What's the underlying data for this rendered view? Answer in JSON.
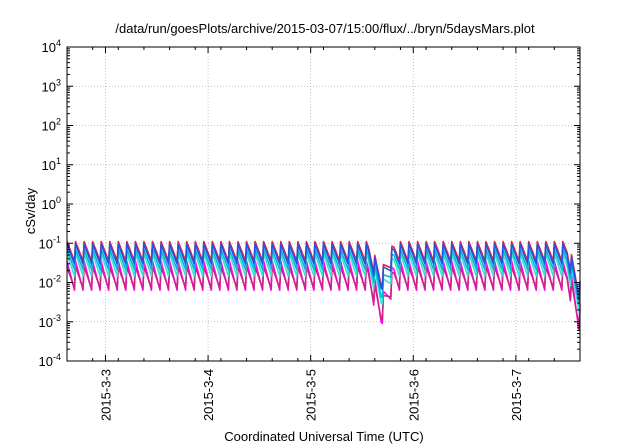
{
  "chart_data": {
    "type": "line",
    "title": "/data/run/goesPlots/archive/2015-03-07/15:00/flux/../bryn/5daysMars.plot",
    "xlabel": "Coordinated Universal Time (UTC)",
    "ylabel": "cSv/day",
    "yscale": "log",
    "ylim": [
      0.0001,
      10000
    ],
    "y_ticks": [
      {
        "value": 0.0001,
        "base": "10",
        "exp": "-4"
      },
      {
        "value": 0.001,
        "base": "10",
        "exp": "-3"
      },
      {
        "value": 0.01,
        "base": "10",
        "exp": "-2"
      },
      {
        "value": 0.1,
        "base": "10",
        "exp": "-1"
      },
      {
        "value": 1,
        "base": "10",
        "exp": "0"
      },
      {
        "value": 10,
        "base": "10",
        "exp": "1"
      },
      {
        "value": 100,
        "base": "10",
        "exp": "2"
      },
      {
        "value": 1000,
        "base": "10",
        "exp": "3"
      },
      {
        "value": 10000,
        "base": "10",
        "exp": "4"
      }
    ],
    "xlim": [
      "2015-03-02T15:00",
      "2015-03-07T15:00"
    ],
    "x_ticks": [
      {
        "label": "2015-3-3",
        "value": "2015-03-03T00:00"
      },
      {
        "label": "2015-3-4",
        "value": "2015-03-04T00:00"
      },
      {
        "label": "2015-3-5",
        "value": "2015-03-05T00:00"
      },
      {
        "label": "2015-3-6",
        "value": "2015-03-06T00:00"
      },
      {
        "label": "2015-3-7",
        "value": "2015-03-07T00:00"
      }
    ],
    "grid": true,
    "legend": "none",
    "series": [
      {
        "color": "#ff00ff",
        "cycle_hours": 2,
        "peak": 0.035,
        "trough": 0.005,
        "dips": [
          {
            "at": "2015-03-05T16:30",
            "value": 0.0006
          },
          {
            "at": "2015-03-07T15:00",
            "value": 0.0004
          }
        ]
      },
      {
        "color": "#cc2288",
        "cycle_hours": 2,
        "peak": 0.025,
        "trough": 0.006,
        "dips": [
          {
            "at": "2015-03-05T16:30",
            "value": 0.0008
          },
          {
            "at": "2015-03-07T15:00",
            "value": 0.0005
          }
        ]
      },
      {
        "color": "#40e0d0",
        "cycle_hours": 2,
        "peak": 0.055,
        "trough": 0.012,
        "dips": [
          {
            "at": "2015-03-05T16:30",
            "value": 0.002
          },
          {
            "at": "2015-03-07T15:00",
            "value": 0.0012
          }
        ]
      },
      {
        "color": "#00b8d8",
        "cycle_hours": 2,
        "peak": 0.07,
        "trough": 0.018,
        "dips": [
          {
            "at": "2015-03-05T16:30",
            "value": 0.003
          },
          {
            "at": "2015-03-07T15:00",
            "value": 0.002
          }
        ]
      },
      {
        "color": "#e0204a",
        "cycle_hours": 2,
        "peak": 0.11,
        "trough": 0.03,
        "dips": [
          {
            "at": "2015-03-05T16:30",
            "value": 0.006
          },
          {
            "at": "2015-03-07T15:00",
            "value": 0.003
          }
        ]
      },
      {
        "color": "#2255dd",
        "cycle_hours": 2,
        "peak": 0.095,
        "trough": 0.025,
        "dips": [
          {
            "at": "2015-03-05T16:30",
            "value": 0.005
          },
          {
            "at": "2015-03-07T15:00",
            "value": 0.0025
          }
        ]
      }
    ]
  }
}
